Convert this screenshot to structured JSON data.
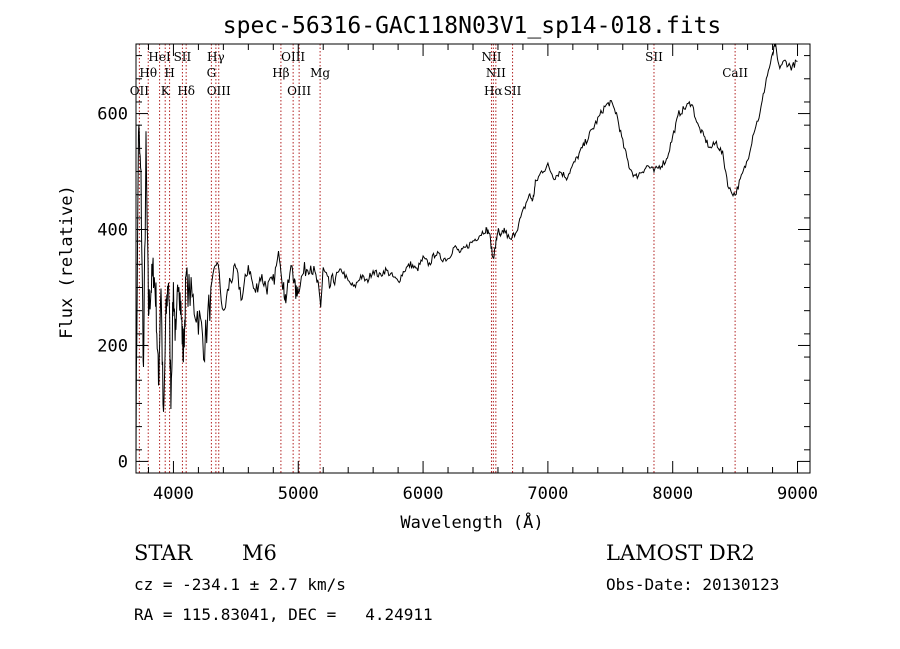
{
  "chart_data": {
    "type": "line",
    "title": "spec-56316-GAC118N03V1_sp14-018.fits",
    "xlabel": "Wavelength (Å)",
    "ylabel": "Flux (relative)",
    "xlim": [
      3700,
      9100
    ],
    "ylim": [
      -20,
      720
    ],
    "xticks": [
      4000,
      5000,
      6000,
      7000,
      8000,
      9000
    ],
    "yticks": [
      0,
      200,
      400,
      600
    ],
    "grid": false,
    "line_color": "#000000",
    "marker_color": "#b22222",
    "spectrum": {
      "x": [
        3700,
        3720,
        3740,
        3760,
        3780,
        3800,
        3820,
        3840,
        3860,
        3880,
        3900,
        3920,
        3940,
        3960,
        3980,
        4000,
        4020,
        4040,
        4060,
        4080,
        4100,
        4150,
        4200,
        4250,
        4300,
        4350,
        4400,
        4450,
        4500,
        4550,
        4600,
        4650,
        4700,
        4750,
        4800,
        4850,
        4880,
        4900,
        4950,
        4980,
        5000,
        5050,
        5100,
        5150,
        5180,
        5200,
        5250,
        5300,
        5350,
        5400,
        5450,
        5500,
        5550,
        5600,
        5650,
        5700,
        5750,
        5800,
        5850,
        5900,
        5950,
        6000,
        6050,
        6100,
        6150,
        6200,
        6250,
        6300,
        6350,
        6400,
        6450,
        6500,
        6530,
        6560,
        6580,
        6600,
        6620,
        6650,
        6700,
        6750,
        6800,
        6850,
        6880,
        6900,
        6950,
        7000,
        7050,
        7100,
        7150,
        7200,
        7250,
        7300,
        7350,
        7400,
        7450,
        7500,
        7550,
        7600,
        7650,
        7700,
        7750,
        7800,
        7850,
        7900,
        7950,
        8000,
        8050,
        8100,
        8150,
        8200,
        8250,
        8300,
        8350,
        8400,
        8450,
        8500,
        8550,
        8600,
        8650,
        8700,
        8750,
        8800,
        8820,
        8850,
        8900,
        8950,
        9000
      ],
      "y": [
        40,
        580,
        480,
        150,
        540,
        260,
        300,
        330,
        280,
        130,
        310,
        60,
        250,
        320,
        120,
        300,
        200,
        330,
        260,
        180,
        310,
        280,
        250,
        200,
        290,
        350,
        250,
        310,
        330,
        280,
        340,
        290,
        320,
        300,
        310,
        360,
        300,
        280,
        340,
        290,
        300,
        330,
        340,
        310,
        270,
        330,
        300,
        320,
        330,
        310,
        300,
        320,
        310,
        330,
        320,
        330,
        320,
        310,
        330,
        340,
        330,
        350,
        340,
        360,
        350,
        350,
        370,
        360,
        370,
        380,
        390,
        400,
        395,
        350,
        370,
        400,
        385,
        400,
        380,
        400,
        430,
        460,
        450,
        480,
        500,
        510,
        490,
        500,
        490,
        510,
        530,
        550,
        570,
        590,
        610,
        620,
        600,
        550,
        510,
        490,
        500,
        510,
        500,
        510,
        520,
        560,
        600,
        610,
        620,
        580,
        560,
        540,
        550,
        530,
        470,
        460,
        490,
        520,
        570,
        600,
        660,
        700,
        720,
        680,
        690,
        680,
        690
      ]
    },
    "lines": [
      {
        "label": "OII",
        "wave": 3727,
        "row": 3
      },
      {
        "label": "Hθ",
        "wave": 3798,
        "row": 2
      },
      {
        "label": "HeI",
        "wave": 3889,
        "row": 1
      },
      {
        "label": "K",
        "wave": 3934,
        "row": 3
      },
      {
        "label": "H",
        "wave": 3969,
        "row": 2
      },
      {
        "label": "SII",
        "wave": 4072,
        "row": 1
      },
      {
        "label": "Hδ",
        "wave": 4102,
        "row": 3
      },
      {
        "label": "Hγ",
        "wave": 4340,
        "row": 1
      },
      {
        "label": "G",
        "wave": 4304,
        "row": 2
      },
      {
        "label": "OIII",
        "wave": 4363,
        "row": 3
      },
      {
        "label": "Hβ",
        "wave": 4861,
        "row": 2
      },
      {
        "label": "OIII",
        "wave": 4959,
        "row": 1
      },
      {
        "label": "OIII",
        "wave": 5007,
        "row": 3
      },
      {
        "label": "Mg",
        "wave": 5175,
        "row": 2
      },
      {
        "label": "NII",
        "wave": 6548,
        "row": 1
      },
      {
        "label": "NII",
        "wave": 6583,
        "row": 2
      },
      {
        "label": "Hα",
        "wave": 6563,
        "row": 3
      },
      {
        "label": "SII",
        "wave": 6717,
        "row": 3
      },
      {
        "label": "SII",
        "wave": 7850,
        "row": 1
      },
      {
        "label": "CaII",
        "wave": 8500,
        "row": 2
      }
    ]
  },
  "info": {
    "class": "STAR",
    "subclass": "M6",
    "survey": "LAMOST DR2",
    "cz": "cz = -234.1 ± 2.7 km/s",
    "obs_date": "Obs-Date: 20130123",
    "radec": "RA = 115.83041, DEC =   4.24911"
  }
}
